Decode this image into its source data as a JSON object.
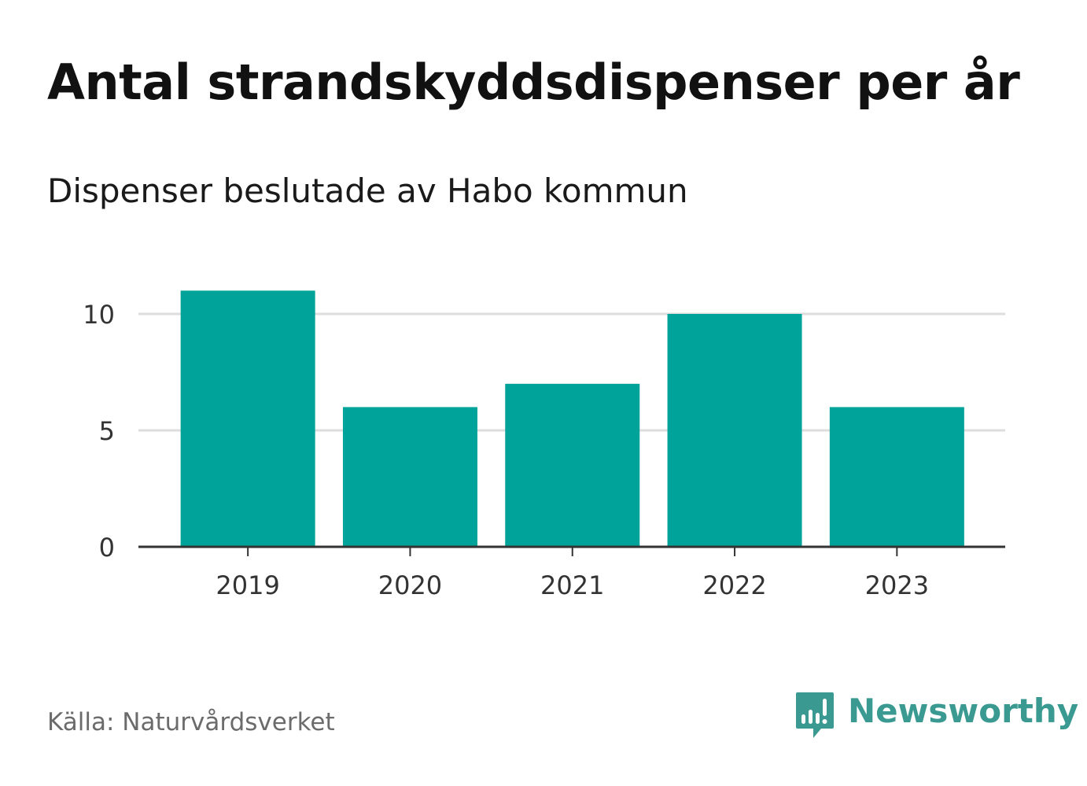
{
  "header": {
    "title": "Antal strandskyddsdispenser per år",
    "subtitle": "Dispenser beslutade av Habo kommun"
  },
  "footer": {
    "source": "Källa: Naturvårdsverket",
    "brand": "Newsworthy",
    "brand_icon": "bar-chart-speech-bubble-icon"
  },
  "colors": {
    "bar": "#00a39a",
    "grid": "#dddddd",
    "axis": "#333333",
    "brand": "#3a9a91"
  },
  "chart_data": {
    "type": "bar",
    "categories": [
      "2019",
      "2020",
      "2021",
      "2022",
      "2023"
    ],
    "values": [
      11,
      6,
      7,
      10,
      6
    ],
    "title": "Antal strandskyddsdispenser per år",
    "subtitle": "Dispenser beslutade av Habo kommun",
    "xlabel": "",
    "ylabel": "",
    "ylim": [
      0,
      11
    ],
    "yticks": [
      0,
      5,
      10
    ],
    "grid": true,
    "legend": "none"
  }
}
